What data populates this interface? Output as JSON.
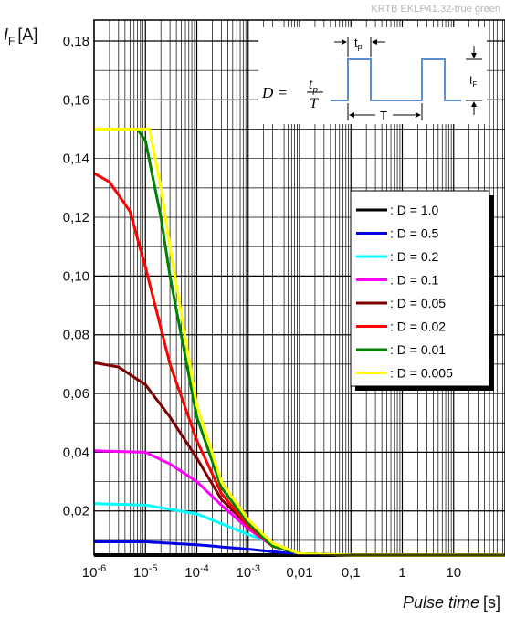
{
  "watermark": "KRTB EKLP41.32-true green",
  "chart_data": {
    "type": "line",
    "title": "",
    "ylabel": {
      "symbol": "I",
      "subscript": "F",
      "unit": "[A]"
    },
    "xlabel": {
      "text": "Pulse time",
      "unit": "[s]"
    },
    "x_scale": "log",
    "xlim": [
      1e-06,
      100
    ],
    "ylim": [
      0.005,
      0.18
    ],
    "grid": true,
    "x_tick_labels": [
      {
        "value": 1e-06,
        "base": "10",
        "exp": "-6"
      },
      {
        "value": 1e-05,
        "base": "10",
        "exp": "-5"
      },
      {
        "value": 0.0001,
        "base": "10",
        "exp": "-4"
      },
      {
        "value": 0.001,
        "base": "10",
        "exp": "-3"
      },
      {
        "value": 0.01,
        "text": "0,01"
      },
      {
        "value": 0.1,
        "text": "0,1"
      },
      {
        "value": 1,
        "text": "1"
      },
      {
        "value": 10,
        "text": "10"
      }
    ],
    "y_ticks": [
      {
        "value": 0.02,
        "text": "0,02"
      },
      {
        "value": 0.04,
        "text": "0,04"
      },
      {
        "value": 0.06,
        "text": "0,06"
      },
      {
        "value": 0.08,
        "text": "0,08"
      },
      {
        "value": 0.1,
        "text": "0,10"
      },
      {
        "value": 0.12,
        "text": "0,12"
      },
      {
        "value": 0.14,
        "text": "0,14"
      },
      {
        "value": 0.16,
        "text": "0,16"
      },
      {
        "value": 0.18,
        "text": "0,18"
      }
    ],
    "legend_position": "right",
    "series": [
      {
        "name": ": D = 1.0",
        "color": "#000000",
        "points": [
          [
            1e-06,
            0.005
          ],
          [
            100,
            0.005
          ]
        ]
      },
      {
        "name": ": D = 0.5",
        "color": "#0000e0",
        "points": [
          [
            1e-06,
            0.0095
          ],
          [
            1e-05,
            0.0095
          ],
          [
            0.0001,
            0.0085
          ],
          [
            0.001,
            0.007
          ],
          [
            0.01,
            0.0052
          ],
          [
            0.1,
            0.005
          ],
          [
            100,
            0.005
          ]
        ]
      },
      {
        "name": ": D = 0.2",
        "color": "#00ffff",
        "points": [
          [
            1e-06,
            0.0225
          ],
          [
            1e-05,
            0.022
          ],
          [
            0.0001,
            0.019
          ],
          [
            0.001,
            0.012
          ],
          [
            0.01,
            0.0055
          ],
          [
            0.1,
            0.005
          ],
          [
            100,
            0.005
          ]
        ]
      },
      {
        "name": ": D = 0.1",
        "color": "#ff00ff",
        "points": [
          [
            1e-06,
            0.0405
          ],
          [
            1e-05,
            0.04
          ],
          [
            3e-05,
            0.036
          ],
          [
            0.0001,
            0.03
          ],
          [
            0.0003,
            0.022
          ],
          [
            0.001,
            0.014
          ],
          [
            0.003,
            0.008
          ],
          [
            0.01,
            0.0055
          ],
          [
            0.1,
            0.005
          ],
          [
            100,
            0.005
          ]
        ]
      },
      {
        "name": ": D = 0.05",
        "color": "#800000",
        "points": [
          [
            1e-06,
            0.0705
          ],
          [
            3e-06,
            0.069
          ],
          [
            1e-05,
            0.063
          ],
          [
            3e-05,
            0.052
          ],
          [
            0.0001,
            0.038
          ],
          [
            0.0003,
            0.024
          ],
          [
            0.001,
            0.015
          ],
          [
            0.003,
            0.008
          ],
          [
            0.01,
            0.0055
          ],
          [
            0.1,
            0.005
          ],
          [
            100,
            0.005
          ]
        ]
      },
      {
        "name": ": D = 0.02",
        "color": "#ff0000",
        "points": [
          [
            1e-06,
            0.135
          ],
          [
            2e-06,
            0.132
          ],
          [
            5e-06,
            0.122
          ],
          [
            1e-05,
            0.103
          ],
          [
            3e-05,
            0.07
          ],
          [
            0.0001,
            0.044
          ],
          [
            0.0003,
            0.026
          ],
          [
            0.001,
            0.015
          ],
          [
            0.003,
            0.008
          ],
          [
            0.01,
            0.0055
          ],
          [
            0.1,
            0.005
          ],
          [
            100,
            0.005
          ]
        ]
      },
      {
        "name": ": D = 0.01",
        "color": "#008000",
        "points": [
          [
            1e-06,
            0.15
          ],
          [
            7e-06,
            0.15
          ],
          [
            1e-05,
            0.146
          ],
          [
            2e-05,
            0.12
          ],
          [
            3e-05,
            0.1
          ],
          [
            0.0001,
            0.052
          ],
          [
            0.0003,
            0.028
          ],
          [
            0.001,
            0.016
          ],
          [
            0.003,
            0.008
          ],
          [
            0.01,
            0.0055
          ],
          [
            0.1,
            0.005
          ],
          [
            100,
            0.005
          ]
        ]
      },
      {
        "name": ": D = 0.005",
        "color": "#ffff00",
        "points": [
          [
            1e-06,
            0.15
          ],
          [
            1.2e-05,
            0.15
          ],
          [
            2e-05,
            0.13
          ],
          [
            3e-05,
            0.11
          ],
          [
            0.0001,
            0.056
          ],
          [
            0.0003,
            0.03
          ],
          [
            0.001,
            0.017
          ],
          [
            0.003,
            0.009
          ],
          [
            0.01,
            0.0055
          ],
          [
            0.1,
            0.005
          ],
          [
            100,
            0.005
          ]
        ]
      }
    ],
    "inset": {
      "formula": {
        "lhs": "D =",
        "numerator": "t",
        "numerator_sub": "p",
        "denominator": "T"
      },
      "label_tp": {
        "base": "t",
        "sub": "p"
      },
      "label_T": "T",
      "label_IF": {
        "base": "I",
        "sub": "F"
      },
      "waveform_color": "#5b8fcf"
    }
  }
}
